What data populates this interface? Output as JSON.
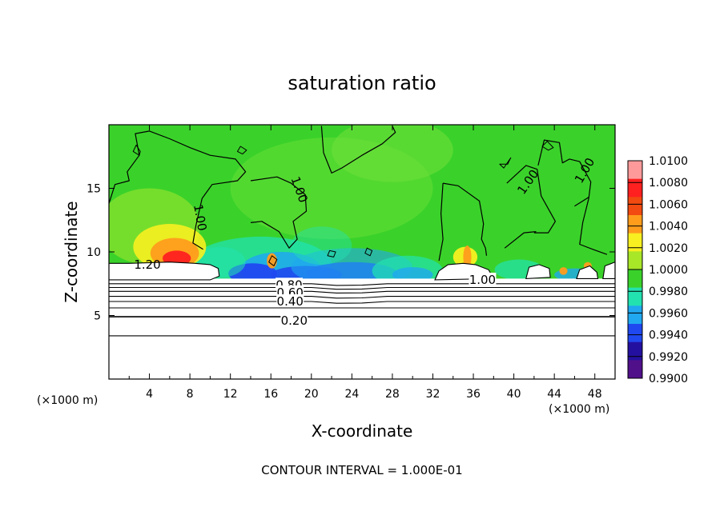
{
  "chart_data": {
    "type": "heatmap",
    "title": "saturation ratio",
    "xlabel": "X-coordinate",
    "ylabel": "Z-coordinate",
    "x_unit_label": "(×1000 m)",
    "z_unit_label": "(×1000 m)",
    "xlim": [
      0,
      50
    ],
    "ylim": [
      0,
      20
    ],
    "x_ticks": [
      4,
      8,
      12,
      16,
      20,
      24,
      28,
      32,
      36,
      40,
      44,
      48
    ],
    "x_tick_labels": [
      "4",
      "8",
      "12",
      "16",
      "20",
      "24",
      "28",
      "32",
      "36",
      "40",
      "44",
      "48"
    ],
    "y_ticks": [
      5,
      10,
      15
    ],
    "y_tick_labels": [
      "5",
      "10",
      "15"
    ],
    "colorbar": {
      "labels": [
        "1.0100",
        "1.0080",
        "1.0060",
        "1.0040",
        "1.0020",
        "1.0000",
        "0.9980",
        "0.9960",
        "0.9940",
        "0.9920",
        "0.9900"
      ],
      "colors": [
        "#ff9a9a",
        "#ff2020",
        "#f24a10",
        "#ff9c1c",
        "#f8f020",
        "#a8e628",
        "#3ad22a",
        "#22e2b0",
        "#20a8f0",
        "#2048f0",
        "#2410a0",
        "#50108a"
      ]
    },
    "contour_labels": [
      {
        "text": "1.20",
        "x": 3.8,
        "z": 9.0
      },
      {
        "text": "1.00",
        "x": 9.0,
        "z": 12.7
      },
      {
        "text": "1.00",
        "x": 18.8,
        "z": 14.9
      },
      {
        "text": "1.00",
        "x": 41.4,
        "z": 15.5
      },
      {
        "text": "1.00",
        "x": 47.0,
        "z": 16.4
      },
      {
        "text": "1.00",
        "x": 36.9,
        "z": 7.8
      },
      {
        "text": "0.80",
        "x": 17.8,
        "z": 7.4
      },
      {
        "text": "0.60",
        "x": 17.9,
        "z": 6.8
      },
      {
        "text": "0.40",
        "x": 17.9,
        "z": 6.1
      },
      {
        "text": "0.20",
        "x": 18.3,
        "z": 4.6
      }
    ],
    "contour_interval_note": "CONTOUR INTERVAL = 1.000E-01"
  }
}
